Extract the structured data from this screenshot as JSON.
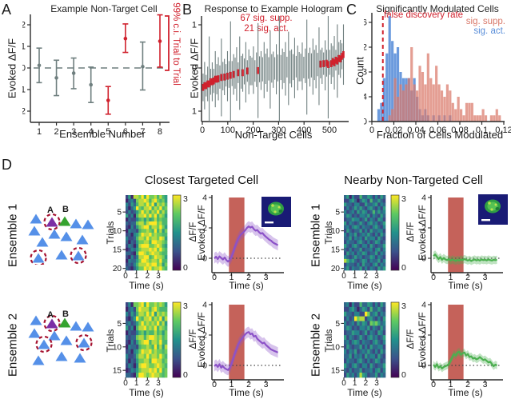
{
  "figure": {
    "background": "#ffffff",
    "letters": {
      "a": "A",
      "b": "B",
      "c": "C",
      "d": "D"
    },
    "shared": {
      "time_label": "Time (s)",
      "trials_label": "Trials",
      "evoked_label": "Evoked ΔF/F",
      "dff_label": "ΔF/F",
      "cbar_max": "3",
      "cbar_min": "0"
    },
    "d": {
      "targeted_title": "Closest Targeted Cell",
      "nontargeted_title": "Nearby Non-Targeted Cell",
      "ensemble1_label": "Ensemble 1",
      "ensemble2_label": "Ensemble 2",
      "target_a": "A",
      "target_b": "B",
      "colors": {
        "cell": "#5590e8",
        "target_a": "#7b2fa5",
        "target_b": "#35a32f",
        "circle": "#a51230",
        "label_a": "#9b59c9",
        "label_b": "#44b43c"
      },
      "ensembles": [
        {
          "cells": [
            [
              18,
              28,
              "b",
              0
            ],
            [
              38,
              32,
              "p",
              1
            ],
            [
              54,
              31,
              "g",
              0
            ],
            [
              68,
              34,
              "b",
              0
            ],
            [
              83,
              35,
              "b",
              0
            ],
            [
              16,
              43,
              "b",
              0
            ],
            [
              41,
              47,
              "b",
              0
            ],
            [
              56,
              50,
              "b",
              0
            ],
            [
              76,
              54,
              "b",
              0
            ],
            [
              26,
              57,
              "b",
              0
            ],
            [
              21,
              77,
              "b",
              1
            ],
            [
              50,
              73,
              "b",
              0
            ],
            [
              71,
              74,
              "b",
              1
            ]
          ],
          "a_pos": [
            36,
            20
          ],
          "b_pos": [
            55,
            19
          ]
        },
        {
          "cells": [
            [
              18,
              13,
              "b",
              0
            ],
            [
              38,
              17,
              "p",
              1
            ],
            [
              54,
              16,
              "g",
              0
            ],
            [
              68,
              20,
              "b",
              0
            ],
            [
              83,
              21,
              "b",
              0
            ],
            [
              16,
              29,
              "b",
              0
            ],
            [
              41,
              32,
              "b",
              0
            ],
            [
              28,
              43,
              "b",
              1
            ],
            [
              56,
              38,
              "b",
              0
            ],
            [
              78,
              41,
              "b",
              1
            ],
            [
              21,
              63,
              "b",
              0
            ],
            [
              50,
              58,
              "b",
              0
            ],
            [
              73,
              60,
              "b",
              0
            ]
          ],
          "a_pos": [
            36,
            9
          ],
          "b_pos": [
            55,
            8
          ]
        }
      ],
      "insets": {
        "targeted": true,
        "nontargeted": true
      }
    }
  },
  "chart_data": [
    {
      "id": "A",
      "type": "errorbar",
      "title": "Example Non-Target Cell",
      "xlabel": "Ensemble Number",
      "ylabel": "Evoked ΔF/F",
      "annotation": "99% c.i. Trial to Trial",
      "xticks": [
        1,
        2,
        3,
        4,
        5,
        6,
        7,
        8
      ],
      "ytick_labels": [
        "-0.2",
        "-0.1",
        "0",
        "0.1",
        "0.2"
      ],
      "ylim": [
        -0.25,
        0.25
      ],
      "zero_line": true,
      "colors": {
        "ns": "#6f7f7f",
        "sig": "#d0212d"
      },
      "points": [
        {
          "x": 1,
          "mean": 0.012,
          "lo": -0.068,
          "hi": 0.092,
          "sig": false
        },
        {
          "x": 2,
          "mean": -0.046,
          "lo": -0.128,
          "hi": 0.036,
          "sig": false
        },
        {
          "x": 3,
          "mean": -0.024,
          "lo": -0.096,
          "hi": 0.046,
          "sig": false
        },
        {
          "x": 4,
          "mean": -0.078,
          "lo": -0.16,
          "hi": 0.004,
          "sig": false
        },
        {
          "x": 5,
          "mean": -0.15,
          "lo": -0.214,
          "hi": -0.086,
          "sig": true
        },
        {
          "x": 6,
          "mean": 0.136,
          "lo": 0.072,
          "hi": 0.204,
          "sig": true
        },
        {
          "x": 7,
          "mean": 0.006,
          "lo": -0.102,
          "hi": 0.12,
          "sig": false
        },
        {
          "x": 8,
          "mean": 0.124,
          "lo": 0.004,
          "hi": 0.246,
          "sig": true
        }
      ]
    },
    {
      "id": "B",
      "type": "errorbar-series",
      "title": "Response to Example Hologram",
      "xlabel": "Non-Target Cells",
      "ylabel": "Evoked ΔF/F",
      "annotations": [
        "67 sig. supp.",
        "21 sig. act."
      ],
      "xticks": [
        0,
        100,
        200,
        300,
        400,
        500
      ],
      "ytick_labels": [
        "-1",
        "0",
        "1"
      ],
      "ylim": [
        -1.3,
        1.25
      ],
      "colors": {
        "bar": "#6f7f7f",
        "sig": "#d0212d"
      },
      "x0": 3,
      "dx": 6,
      "means": [
        -0.45,
        -0.41,
        -0.41,
        -0.37,
        -0.37,
        -0.32,
        -0.32,
        -0.3,
        -0.26,
        -0.26,
        -0.25,
        -0.21,
        -0.22,
        -0.19,
        -0.21,
        -0.17,
        -0.19,
        -0.15,
        -0.17,
        -0.13,
        -0.15,
        -0.12,
        -0.14,
        -0.11,
        -0.12,
        -0.1,
        -0.11,
        -0.08,
        -0.1,
        -0.07,
        -0.09,
        -0.06,
        -0.08,
        -0.05,
        -0.07,
        -0.04,
        -0.06,
        -0.03,
        -0.06,
        -0.03,
        -0.05,
        -0.02,
        -0.05,
        -0.02,
        -0.04,
        -0.01,
        -0.04,
        -0.01,
        -0.03,
        0.0,
        -0.03,
        0.01,
        -0.02,
        0.01,
        -0.02,
        0.02,
        -0.01,
        0.02,
        -0.01,
        0.02,
        0.0,
        0.03,
        0.0,
        0.03,
        0.01,
        0.04,
        0.01,
        0.05,
        0.02,
        0.05,
        0.02,
        0.06,
        0.03,
        0.07,
        0.03,
        0.08,
        0.04,
        0.09,
        0.05,
        0.1,
        0.06,
        0.11,
        0.08,
        0.13,
        0.1,
        0.15,
        0.12,
        0.18,
        0.16,
        0.22,
        0.21,
        0.27,
        0.31
      ],
      "half_widths": [
        0.32,
        0.55,
        0.25,
        0.4,
        1.1,
        0.3,
        0.45,
        0.28,
        0.65,
        0.35,
        0.5,
        0.27,
        0.9,
        0.33,
        0.42,
        0.26,
        0.58,
        0.31,
        1.25,
        0.29,
        0.47,
        0.36,
        0.62,
        0.24,
        0.85,
        0.38,
        0.44,
        0.3,
        0.7,
        0.25,
        0.52,
        0.34,
        0.32,
        0.55,
        0.25,
        0.4,
        1.1,
        0.3,
        0.45,
        0.28,
        0.65,
        0.35,
        0.5,
        0.27,
        0.9,
        0.33,
        0.42,
        0.26,
        0.58,
        0.31,
        1.25,
        0.29,
        0.47,
        0.36,
        0.62,
        0.24,
        0.85,
        0.38,
        0.44,
        0.3,
        0.7,
        0.25,
        0.52,
        0.34,
        0.32,
        0.55,
        0.25,
        0.4,
        1.1,
        0.3,
        0.45,
        0.28,
        0.65,
        0.35,
        0.5,
        0.27,
        0.9,
        0.33,
        0.42,
        0.26,
        0.58,
        0.31,
        1.25,
        0.29,
        0.47,
        0.36,
        0.62,
        0.24,
        0.85,
        0.38,
        0.44,
        0.3,
        0.7
      ],
      "sig": [
        1,
        1,
        1,
        1,
        1,
        1,
        1,
        1,
        1,
        1,
        1,
        0,
        1,
        0,
        1,
        0,
        1,
        0,
        1,
        0,
        1,
        0,
        0,
        1,
        0,
        0,
        1,
        0,
        0,
        1,
        0,
        0,
        0,
        0,
        0,
        0,
        1,
        0,
        0,
        0,
        0,
        0,
        0,
        0,
        0,
        0,
        0,
        0,
        0,
        0,
        0,
        0,
        0,
        0,
        0,
        0,
        0,
        0,
        0,
        0,
        0,
        0,
        0,
        0,
        0,
        0,
        0,
        0,
        0,
        0,
        0,
        0,
        0,
        0,
        0,
        0,
        0,
        2,
        0,
        2,
        0,
        2,
        2,
        0,
        2,
        2,
        2,
        2,
        2,
        2,
        2,
        2,
        2,
        2
      ]
    },
    {
      "id": "C",
      "type": "histogram",
      "title": "Significantly Modulated Cells",
      "xlabel": "Fraction of Cells Modulated",
      "ylabel": "Count",
      "fdr_label": "false discovery rate",
      "fdr_x": 0.01,
      "fdr_color": "#d0212d",
      "bin_width": 0.0025,
      "xtick_labels": [
        "0",
        "0.02",
        "0.04",
        "0.06",
        "0.08",
        "0.1",
        "0.12"
      ],
      "xtick_values": [
        0,
        0.02,
        0.04,
        0.06,
        0.08,
        0.1,
        0.12
      ],
      "yticks": [
        0,
        4,
        8,
        12,
        16
      ],
      "xlim": [
        0,
        0.12
      ],
      "series": [
        {
          "name": "sig. act.",
          "color": "#5b8fd9",
          "counts": [
            0,
            0,
            2,
            3,
            7,
            11,
            17,
            13,
            11,
            12,
            8,
            7,
            7,
            7,
            5,
            7,
            4,
            2,
            1,
            2,
            1,
            0,
            1,
            0,
            1,
            0,
            1,
            0,
            1,
            0,
            0,
            0,
            0,
            0,
            0,
            0,
            0,
            0,
            0,
            0,
            0,
            0,
            0,
            0,
            0,
            0,
            0,
            0
          ]
        },
        {
          "name": "sig. supp.",
          "color": "#d9796a",
          "counts": [
            0,
            0,
            0,
            0,
            0,
            0,
            1,
            2,
            7,
            4,
            6,
            5,
            6,
            7,
            12,
            6,
            5,
            9,
            8,
            6,
            11,
            7,
            6,
            9,
            6,
            5,
            4,
            6,
            5,
            3,
            2,
            4,
            2,
            1,
            3,
            3,
            3,
            1,
            1,
            1,
            2,
            1,
            0,
            1,
            1,
            2,
            1,
            0
          ]
        }
      ]
    },
    {
      "id": "hm-e1-t",
      "type": "heatmap",
      "rows": 20,
      "cols": 16,
      "t_max": 3.8,
      "zlim": [
        0,
        3
      ],
      "trial_ticks": [
        5,
        10,
        15,
        20
      ],
      "time_ticks": [
        0,
        1,
        2,
        3
      ],
      "values": [
        "2518879697786865",
        "1342788986897675",
        "4253688797958786",
        "3135976889687967",
        "2423579786879686",
        "5241688979796875",
        "1322467575686766",
        "3233788689997866",
        "2142578996887975",
        "1433267787696857",
        "2314579889787766",
        "4223688797887985",
        "3132577886998876",
        "2431489997789865",
        "1243578889897976",
        "3321699878988766",
        "2142488996798875",
        "1433579987887966",
        "2324688898997857",
        "3213577989788976"
      ]
    },
    {
      "id": "hm-e1-n",
      "type": "heatmap",
      "rows": 20,
      "cols": 16,
      "t_max": 3.8,
      "zlim": [
        0,
        3
      ],
      "trial_ticks": [
        5,
        10,
        15,
        20
      ],
      "time_ticks": [
        0,
        1,
        2,
        3
      ],
      "values": [
        "3514226335424253",
        "2245313542633532",
        "5332442253345243",
        "2423535324532425",
        "4234253542363534",
        "3542324435243253",
        "2335442352432542",
        "5243235324534235",
        "3424542433245324",
        "2532335242533442",
        "4243523435324253",
        "3352434253442532",
        "2433245324235423",
        "5324532442532335",
        "3242335233424524",
        "2534243542335243",
        "4323534233542432",
        "8645323542433524",
        "2433242533245243",
        "3524335242432535"
      ]
    },
    {
      "id": "hm-e2-t",
      "type": "heatmap",
      "rows": 16,
      "cols": 16,
      "t_max": 3.8,
      "zlim": [
        0,
        3
      ],
      "trial_ticks": [
        5,
        10,
        15
      ],
      "time_ticks": [
        0,
        1,
        2,
        3
      ],
      "values": [
        "2417789697787875",
        "1342798886897666",
        "4253688797958787",
        "2135976889687958",
        "3423579787879685",
        "5241688978796876",
        "1322467576686757",
        "3233788689987867",
        "2142578996887966",
        "1433267787696858",
        "2314579889787767",
        "4223688797887976",
        "3132577886998867",
        "2431489987789876",
        "1243578889897967",
        "3321699878988767"
      ]
    },
    {
      "id": "hm-e2-n",
      "type": "heatmap",
      "rows": 16,
      "cols": 16,
      "t_max": 3.8,
      "zlim": [
        0,
        3
      ],
      "trial_ticks": [
        5,
        10,
        15
      ],
      "time_ticks": [
        0,
        1,
        2,
        3
      ],
      "values": [
        "3414226335424253",
        "2245313542633532",
        "5332442297345243",
        "2423978824532425",
        "4234253542767534",
        "3542324435243253",
        "2335442352432542",
        "5243235324534235",
        "3424542433245324",
        "2532335242533442",
        "4243523435324253",
        "3352434253442532",
        "2433245324235423",
        "5324532442532335",
        "3242335233424524",
        "2534248542335243"
      ]
    },
    {
      "id": "tr-e1-t",
      "type": "line",
      "color": "#8c52c8",
      "band": 0.35,
      "t0": 0,
      "dt": 0.1,
      "stim": [
        0.85,
        1.75
      ],
      "stim_color": "#c5625a",
      "yticks": [
        0,
        2,
        4
      ],
      "ylim": [
        -0.95,
        4
      ],
      "xticks": [
        0,
        1,
        2,
        3
      ],
      "zero_dotted": true,
      "mean": [
        0.0,
        0.1,
        -0.05,
        0.12,
        0.02,
        -0.08,
        0.05,
        -0.12,
        -0.22,
        -0.1,
        0.1,
        0.4,
        0.75,
        1.05,
        1.3,
        1.5,
        1.62,
        1.72,
        1.85,
        2.0,
        2.1,
        2.02,
        2.08,
        1.92,
        1.82,
        1.86,
        1.72,
        1.62,
        1.66,
        1.52,
        1.42,
        1.32,
        1.22,
        1.16,
        1.05,
        0.98,
        0.92,
        0.86
      ]
    },
    {
      "id": "tr-e1-n",
      "type": "line",
      "color": "#4bb04f",
      "band": 0.27,
      "t0": 0,
      "dt": 0.1,
      "stim": [
        0.85,
        1.75
      ],
      "stim_color": "#c5625a",
      "yticks": [
        0,
        2,
        4
      ],
      "ylim": [
        -0.95,
        4
      ],
      "xticks": [
        0,
        1,
        2,
        3
      ],
      "zero_dotted": true,
      "mean": [
        0.15,
        0.25,
        0.1,
        -0.05,
        0.08,
        -0.1,
        0.02,
        -0.08,
        -0.12,
        -0.05,
        -0.15,
        -0.08,
        -0.12,
        -0.18,
        -0.1,
        -0.15,
        -0.08,
        -0.12,
        -0.05,
        -0.1,
        -0.15,
        -0.1,
        -0.18,
        -0.12,
        -0.08,
        -0.14,
        -0.1,
        -0.15,
        -0.08,
        -0.12,
        -0.1,
        -0.14,
        -0.08,
        -0.12,
        -0.15,
        -0.1,
        -0.12,
        -0.1
      ]
    },
    {
      "id": "tr-e2-t",
      "type": "line",
      "color": "#8c52c8",
      "band": 0.35,
      "t0": 0,
      "dt": 0.1,
      "stim": [
        0.85,
        1.75
      ],
      "stim_color": "#c5625a",
      "yticks": [
        0,
        2,
        4
      ],
      "ylim": [
        -0.95,
        4
      ],
      "xticks": [
        0,
        1,
        2,
        3
      ],
      "zero_dotted": true,
      "mean": [
        -0.05,
        0.05,
        -0.1,
        0.08,
        -0.15,
        -0.05,
        -0.18,
        -0.25,
        -0.3,
        -0.15,
        0.1,
        0.45,
        0.8,
        1.1,
        1.4,
        1.6,
        1.75,
        1.9,
        2.05,
        2.15,
        2.2,
        2.05,
        2.1,
        1.9,
        1.95,
        1.75,
        1.65,
        1.55,
        1.45,
        1.5,
        1.35,
        1.25,
        1.15,
        1.05,
        1.0,
        0.95,
        0.9,
        0.85
      ]
    },
    {
      "id": "tr-e2-n",
      "type": "line",
      "color": "#4bb04f",
      "band": 0.25,
      "t0": 0,
      "dt": 0.1,
      "stim": [
        0.85,
        1.75
      ],
      "stim_color": "#c5625a",
      "yticks": [
        0,
        2,
        4
      ],
      "ylim": [
        -0.95,
        4
      ],
      "xticks": [
        0,
        1,
        2,
        3
      ],
      "zero_dotted": true,
      "mean": [
        0.05,
        -0.1,
        0.08,
        -0.15,
        -0.05,
        -0.2,
        -0.1,
        -0.05,
        0.0,
        0.1,
        0.3,
        0.55,
        0.75,
        0.65,
        0.85,
        0.9,
        0.7,
        0.8,
        0.85,
        0.65,
        0.75,
        0.55,
        0.6,
        0.45,
        0.5,
        0.4,
        0.45,
        0.55,
        0.45,
        0.35,
        0.4,
        0.3,
        0.2,
        0.25,
        0.1,
        -0.05,
        0.05,
        0.0
      ]
    }
  ]
}
